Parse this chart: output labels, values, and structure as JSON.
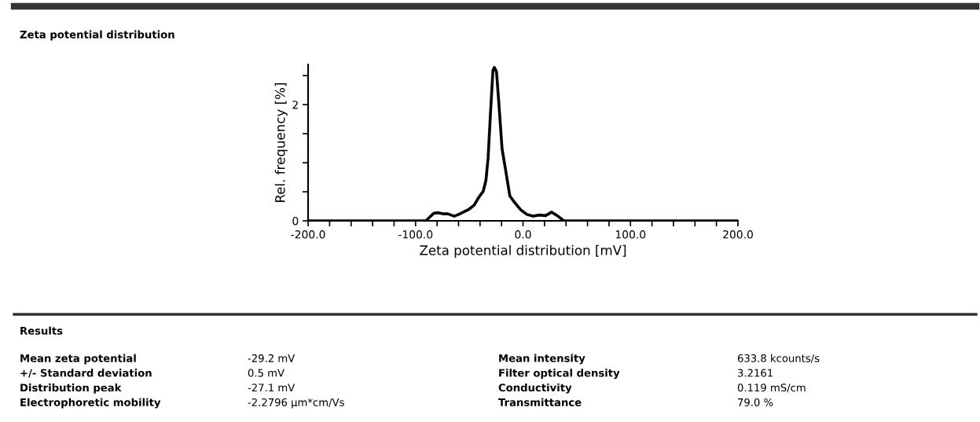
{
  "chart_data": {
    "type": "line",
    "title": "Zeta potential distribution",
    "xlabel": "Zeta potential distribution [mV]",
    "ylabel": "Rel. frequency [%]",
    "x": [
      -200,
      -99,
      -90.5,
      -83,
      -78.7,
      -74,
      -70,
      -64,
      -60,
      -51,
      -45.5,
      -41,
      -37,
      -34.5,
      -32.5,
      -30.5,
      -28,
      -26.7,
      -24.7,
      -22.4,
      -19.5,
      -16.6,
      -12.3,
      -8,
      -2.2,
      3.6,
      9.4,
      15.2,
      21,
      26.7,
      32.5,
      38,
      200
    ],
    "series": [
      {
        "color": "#000000",
        "values": [
          0,
          0,
          0,
          0.13,
          0.14,
          0.12,
          0.12,
          0.08,
          0.11,
          0.19,
          0.27,
          0.41,
          0.51,
          0.7,
          1.08,
          1.78,
          2.59,
          2.64,
          2.57,
          2.0,
          1.24,
          0.92,
          0.43,
          0.32,
          0.19,
          0.11,
          0.08,
          0.1,
          0.09,
          0.15,
          0.08,
          0,
          0
        ]
      }
    ],
    "xlim": [
      -200,
      200
    ],
    "xticks": [
      {
        "value": -200,
        "label": "-200.0"
      },
      {
        "value": -180,
        "label": null
      },
      {
        "value": -160,
        "label": null
      },
      {
        "value": -140,
        "label": null
      },
      {
        "value": -120,
        "label": null
      },
      {
        "value": -100,
        "label": "-100.0"
      },
      {
        "value": -80,
        "label": null
      },
      {
        "value": -60,
        "label": null
      },
      {
        "value": -40,
        "label": null
      },
      {
        "value": -20,
        "label": null
      },
      {
        "value": 0,
        "label": "0.0"
      },
      {
        "value": 20,
        "label": null
      },
      {
        "value": 40,
        "label": null
      },
      {
        "value": 60,
        "label": null
      },
      {
        "value": 80,
        "label": null
      },
      {
        "value": 100,
        "label": "100.0"
      },
      {
        "value": 120,
        "label": null
      },
      {
        "value": 140,
        "label": null
      },
      {
        "value": 160,
        "label": null
      },
      {
        "value": 180,
        "label": null
      },
      {
        "value": 200,
        "label": "200.0"
      }
    ],
    "ylim": [
      0,
      2.69
    ],
    "yticks": [
      0,
      {
        "value": 0.5,
        "label": null
      },
      {
        "value": 1,
        "label": null
      },
      {
        "value": 1.5,
        "label": null
      },
      2,
      {
        "value": 2.5,
        "label": null
      }
    ],
    "grid": false,
    "legend": false,
    "marker": "none",
    "line_style": "solid",
    "annotations": [
      "Results",
      "Mean zeta potential",
      "-29.2 mV",
      "Mean intensity",
      "633.8 kcounts/s",
      "+/- Standard deviation",
      "0.5 mV",
      "Filter optical density",
      "3.2161",
      "Distribution peak",
      "-27.1 mV",
      "Conductivity",
      "0.119 mS/cm",
      "Electrophoretic mobility",
      "-2.2796 µm*cm/Vs",
      "Transmittance",
      "79.0 %"
    ]
  }
}
